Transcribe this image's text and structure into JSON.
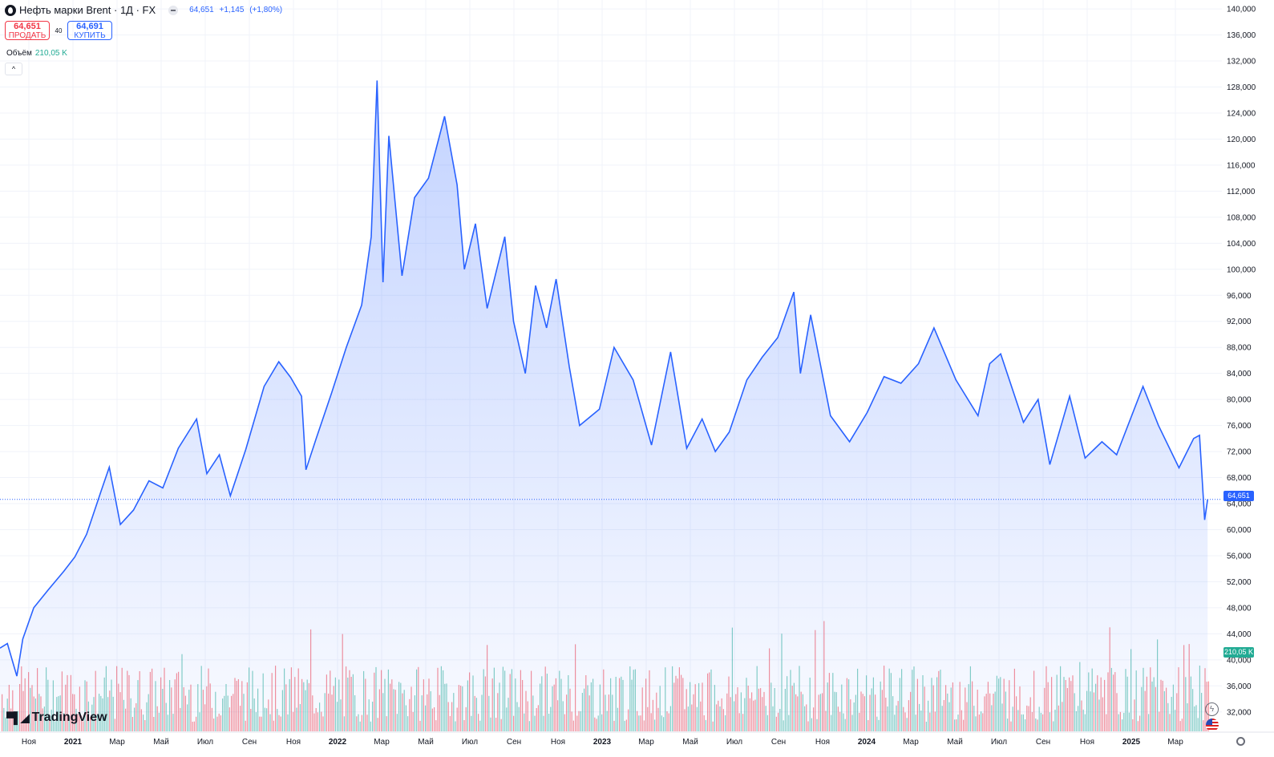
{
  "header": {
    "title": "Нефть марки Brent · 1Д · FX",
    "last": "64,651",
    "change": "+1,145",
    "change_pct": "(+1,80%)"
  },
  "trade": {
    "sell_price": "64,651",
    "sell_label": "ПРОДАТЬ",
    "spread": "40",
    "buy_price": "64,691",
    "buy_label": "КУПИТЬ"
  },
  "volume": {
    "label": "Объём",
    "value": "210,05 K"
  },
  "price_tag": "64,651",
  "volume_tag": "210,05 K",
  "brand": "TradingView",
  "colors": {
    "line": "#2962ff",
    "vol_up": "#22ab94",
    "vol_down": "#f23645",
    "text": "#131722",
    "grid": "#f0f3fa"
  },
  "chart_data": {
    "type": "area",
    "y_axis_ticks": [
      "32,000",
      "36,000",
      "40,000",
      "44,000",
      "48,000",
      "52,000",
      "56,000",
      "60,000",
      "64,000",
      "68,000",
      "72,000",
      "76,000",
      "80,000",
      "84,000",
      "88,000",
      "92,000",
      "96,000",
      "100,000",
      "104,000",
      "108,000",
      "112,000",
      "116,000",
      "120,000",
      "124,000",
      "128,000",
      "132,000",
      "136,000",
      "140,000"
    ],
    "ylim": [
      30,
      141
    ],
    "x_ticks": [
      {
        "label": "Ноя",
        "bold": false
      },
      {
        "label": "2021",
        "bold": true
      },
      {
        "label": "Мар",
        "bold": false
      },
      {
        "label": "Май",
        "bold": false
      },
      {
        "label": "Июл",
        "bold": false
      },
      {
        "label": "Сен",
        "bold": false
      },
      {
        "label": "Ноя",
        "bold": false
      },
      {
        "label": "2022",
        "bold": true
      },
      {
        "label": "Мар",
        "bold": false
      },
      {
        "label": "Май",
        "bold": false
      },
      {
        "label": "Июл",
        "bold": false
      },
      {
        "label": "Сен",
        "bold": false
      },
      {
        "label": "Ноя",
        "bold": false
      },
      {
        "label": "2023",
        "bold": true
      },
      {
        "label": "Мар",
        "bold": false
      },
      {
        "label": "Май",
        "bold": false
      },
      {
        "label": "Июл",
        "bold": false
      },
      {
        "label": "Сен",
        "bold": false
      },
      {
        "label": "Ноя",
        "bold": false
      },
      {
        "label": "2024",
        "bold": true
      },
      {
        "label": "Мар",
        "bold": false
      },
      {
        "label": "Май",
        "bold": false
      },
      {
        "label": "Июл",
        "bold": false
      },
      {
        "label": "Сен",
        "bold": false
      },
      {
        "label": "Ноя",
        "bold": false
      },
      {
        "label": "2025",
        "bold": true
      },
      {
        "label": "Мар",
        "bold": false
      }
    ],
    "x_range": [
      "2020-10-10",
      "2025-04-15"
    ],
    "series": [
      {
        "values": [
          {
            "x": "2020-10-10",
            "y": 41.8
          },
          {
            "x": "2020-10-20",
            "y": 42.5
          },
          {
            "x": "2020-11-02",
            "y": 37.5
          },
          {
            "x": "2020-11-10",
            "y": 43.2
          },
          {
            "x": "2020-11-25",
            "y": 48.0
          },
          {
            "x": "2020-12-15",
            "y": 50.8
          },
          {
            "x": "2021-01-05",
            "y": 53.6
          },
          {
            "x": "2021-01-20",
            "y": 55.8
          },
          {
            "x": "2021-02-05",
            "y": 59.3
          },
          {
            "x": "2021-02-25",
            "y": 66.0
          },
          {
            "x": "2021-03-08",
            "y": 69.6
          },
          {
            "x": "2021-03-23",
            "y": 60.8
          },
          {
            "x": "2021-04-10",
            "y": 63.0
          },
          {
            "x": "2021-05-01",
            "y": 67.5
          },
          {
            "x": "2021-05-20",
            "y": 66.4
          },
          {
            "x": "2021-06-10",
            "y": 72.5
          },
          {
            "x": "2021-07-05",
            "y": 77.0
          },
          {
            "x": "2021-07-19",
            "y": 68.6
          },
          {
            "x": "2021-08-05",
            "y": 71.5
          },
          {
            "x": "2021-08-20",
            "y": 65.2
          },
          {
            "x": "2021-09-10",
            "y": 72.3
          },
          {
            "x": "2021-10-05",
            "y": 82.0
          },
          {
            "x": "2021-10-25",
            "y": 85.8
          },
          {
            "x": "2021-11-10",
            "y": 83.4
          },
          {
            "x": "2021-11-25",
            "y": 80.5
          },
          {
            "x": "2021-12-01",
            "y": 69.2
          },
          {
            "x": "2021-12-15",
            "y": 74.0
          },
          {
            "x": "2022-01-05",
            "y": 81.0
          },
          {
            "x": "2022-01-25",
            "y": 88.0
          },
          {
            "x": "2022-02-15",
            "y": 94.5
          },
          {
            "x": "2022-02-28",
            "y": 105.0
          },
          {
            "x": "2022-03-08",
            "y": 129.0
          },
          {
            "x": "2022-03-16",
            "y": 98.0
          },
          {
            "x": "2022-03-24",
            "y": 120.5
          },
          {
            "x": "2022-04-11",
            "y": 99.0
          },
          {
            "x": "2022-04-28",
            "y": 111.0
          },
          {
            "x": "2022-05-17",
            "y": 114.0
          },
          {
            "x": "2022-06-08",
            "y": 123.5
          },
          {
            "x": "2022-06-25",
            "y": 113.0
          },
          {
            "x": "2022-07-05",
            "y": 100.0
          },
          {
            "x": "2022-07-20",
            "y": 107.0
          },
          {
            "x": "2022-08-05",
            "y": 94.0
          },
          {
            "x": "2022-08-29",
            "y": 105.0
          },
          {
            "x": "2022-09-10",
            "y": 92.0
          },
          {
            "x": "2022-09-26",
            "y": 84.0
          },
          {
            "x": "2022-10-10",
            "y": 97.5
          },
          {
            "x": "2022-10-25",
            "y": 91.0
          },
          {
            "x": "2022-11-07",
            "y": 98.5
          },
          {
            "x": "2022-11-25",
            "y": 85.0
          },
          {
            "x": "2022-12-09",
            "y": 76.0
          },
          {
            "x": "2023-01-05",
            "y": 78.5
          },
          {
            "x": "2023-01-25",
            "y": 88.0
          },
          {
            "x": "2023-02-20",
            "y": 83.0
          },
          {
            "x": "2023-03-17",
            "y": 73.0
          },
          {
            "x": "2023-04-12",
            "y": 87.3
          },
          {
            "x": "2023-05-04",
            "y": 72.5
          },
          {
            "x": "2023-05-25",
            "y": 77.0
          },
          {
            "x": "2023-06-12",
            "y": 72.0
          },
          {
            "x": "2023-07-01",
            "y": 75.0
          },
          {
            "x": "2023-07-25",
            "y": 83.0
          },
          {
            "x": "2023-08-15",
            "y": 86.5
          },
          {
            "x": "2023-09-05",
            "y": 89.5
          },
          {
            "x": "2023-09-27",
            "y": 96.5
          },
          {
            "x": "2023-10-06",
            "y": 84.0
          },
          {
            "x": "2023-10-20",
            "y": 93.0
          },
          {
            "x": "2023-11-16",
            "y": 77.5
          },
          {
            "x": "2023-12-12",
            "y": 73.5
          },
          {
            "x": "2024-01-05",
            "y": 78.0
          },
          {
            "x": "2024-01-28",
            "y": 83.5
          },
          {
            "x": "2024-02-20",
            "y": 82.5
          },
          {
            "x": "2024-03-15",
            "y": 85.5
          },
          {
            "x": "2024-04-05",
            "y": 91.0
          },
          {
            "x": "2024-04-20",
            "y": 87.0
          },
          {
            "x": "2024-05-05",
            "y": 83.0
          },
          {
            "x": "2024-06-04",
            "y": 77.5
          },
          {
            "x": "2024-06-20",
            "y": 85.5
          },
          {
            "x": "2024-07-05",
            "y": 87.0
          },
          {
            "x": "2024-08-05",
            "y": 76.5
          },
          {
            "x": "2024-08-25",
            "y": 80.0
          },
          {
            "x": "2024-09-10",
            "y": 70.0
          },
          {
            "x": "2024-10-07",
            "y": 80.5
          },
          {
            "x": "2024-10-28",
            "y": 71.0
          },
          {
            "x": "2024-11-20",
            "y": 73.5
          },
          {
            "x": "2024-12-10",
            "y": 71.5
          },
          {
            "x": "2025-01-15",
            "y": 82.0
          },
          {
            "x": "2025-02-05",
            "y": 76.0
          },
          {
            "x": "2025-03-05",
            "y": 69.5
          },
          {
            "x": "2025-03-25",
            "y": 74.0
          },
          {
            "x": "2025-04-02",
            "y": 74.5
          },
          {
            "x": "2025-04-09",
            "y": 61.5
          },
          {
            "x": "2025-04-13",
            "y": 64.651
          }
        ]
      }
    ],
    "current_value": 64.651,
    "volume_bars_shown": true
  }
}
